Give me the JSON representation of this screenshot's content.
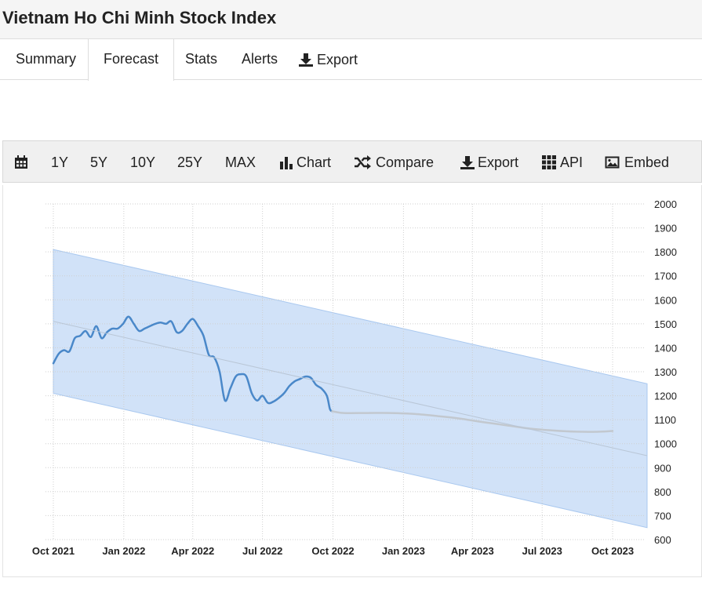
{
  "page": {
    "title": "Vietnam Ho Chi Minh Stock Index"
  },
  "tabs": {
    "summary": "Summary",
    "forecast": "Forecast",
    "stats": "Stats",
    "alerts": "Alerts",
    "export": "Export"
  },
  "toolbar": {
    "range_1y": "1Y",
    "range_5y": "5Y",
    "range_10y": "10Y",
    "range_25y": "25Y",
    "range_max": "MAX",
    "chart": "Chart",
    "compare": "Compare",
    "export": "Export",
    "api": "API",
    "embed": "Embed"
  },
  "icons": {
    "calendar": "calendar-icon",
    "download": "download-icon",
    "bar_chart": "bar-chart-icon",
    "shuffle": "shuffle-icon",
    "grid": "grid-icon",
    "image": "image-icon"
  },
  "colors": {
    "historical_line": "#4a88c9",
    "forecast_line": "#c2c8cf",
    "trend_line": "#b9c6d6",
    "band_fill": "#d1e2f8",
    "band_edge": "#a9c8ef",
    "grid": "#cfcfcf"
  },
  "chart_data": {
    "type": "line",
    "title": "",
    "xlabel": "",
    "ylabel": "",
    "y_axis_position": "right",
    "ylim": [
      600,
      2000
    ],
    "y_ticks": [
      600,
      700,
      800,
      900,
      1000,
      1100,
      1200,
      1300,
      1400,
      1500,
      1600,
      1700,
      1800,
      1900,
      2000
    ],
    "x_ticks": [
      {
        "date": "2021-10-01",
        "label": "Oct 2021"
      },
      {
        "date": "2022-01-01",
        "label": "Jan 2022"
      },
      {
        "date": "2022-04-01",
        "label": "Apr 2022"
      },
      {
        "date": "2022-07-01",
        "label": "Jul 2022"
      },
      {
        "date": "2022-10-01",
        "label": "Oct 2022"
      },
      {
        "date": "2023-01-01",
        "label": "Jan 2023"
      },
      {
        "date": "2023-04-01",
        "label": "Apr 2023"
      },
      {
        "date": "2023-07-01",
        "label": "Jul 2023"
      },
      {
        "date": "2023-10-01",
        "label": "Oct 2023"
      }
    ],
    "xlim": [
      "2021-10-01",
      "2023-11-15"
    ],
    "grid": true,
    "series": [
      {
        "role": "historical",
        "points": [
          [
            "2021-10-01",
            1335
          ],
          [
            "2021-10-08",
            1375
          ],
          [
            "2021-10-15",
            1390
          ],
          [
            "2021-10-22",
            1385
          ],
          [
            "2021-10-29",
            1440
          ],
          [
            "2021-11-05",
            1450
          ],
          [
            "2021-11-12",
            1470
          ],
          [
            "2021-11-19",
            1445
          ],
          [
            "2021-11-26",
            1490
          ],
          [
            "2021-12-03",
            1440
          ],
          [
            "2021-12-10",
            1465
          ],
          [
            "2021-12-17",
            1480
          ],
          [
            "2021-12-24",
            1480
          ],
          [
            "2021-12-31",
            1500
          ],
          [
            "2022-01-07",
            1530
          ],
          [
            "2022-01-14",
            1500
          ],
          [
            "2022-01-21",
            1470
          ],
          [
            "2022-01-28",
            1480
          ],
          [
            "2022-02-04",
            1490
          ],
          [
            "2022-02-11",
            1500
          ],
          [
            "2022-02-18",
            1505
          ],
          [
            "2022-02-25",
            1500
          ],
          [
            "2022-03-04",
            1510
          ],
          [
            "2022-03-11",
            1465
          ],
          [
            "2022-03-18",
            1470
          ],
          [
            "2022-03-25",
            1500
          ],
          [
            "2022-04-01",
            1520
          ],
          [
            "2022-04-08",
            1490
          ],
          [
            "2022-04-15",
            1450
          ],
          [
            "2022-04-22",
            1370
          ],
          [
            "2022-04-29",
            1360
          ],
          [
            "2022-05-06",
            1300
          ],
          [
            "2022-05-13",
            1180
          ],
          [
            "2022-05-20",
            1230
          ],
          [
            "2022-05-27",
            1280
          ],
          [
            "2022-06-03",
            1290
          ],
          [
            "2022-06-10",
            1280
          ],
          [
            "2022-06-17",
            1210
          ],
          [
            "2022-06-24",
            1180
          ],
          [
            "2022-07-01",
            1200
          ],
          [
            "2022-07-08",
            1170
          ],
          [
            "2022-07-15",
            1175
          ],
          [
            "2022-07-22",
            1190
          ],
          [
            "2022-07-29",
            1210
          ],
          [
            "2022-08-05",
            1240
          ],
          [
            "2022-08-12",
            1260
          ],
          [
            "2022-08-19",
            1270
          ],
          [
            "2022-08-26",
            1280
          ],
          [
            "2022-09-02",
            1275
          ],
          [
            "2022-09-09",
            1245
          ],
          [
            "2022-09-16",
            1230
          ],
          [
            "2022-09-23",
            1200
          ],
          [
            "2022-09-27",
            1145
          ],
          [
            "2022-09-30",
            1135
          ]
        ]
      },
      {
        "role": "forecast",
        "points": [
          [
            "2022-09-30",
            1135
          ],
          [
            "2022-10-15",
            1128
          ],
          [
            "2022-11-15",
            1128
          ],
          [
            "2022-12-15",
            1128
          ],
          [
            "2023-01-15",
            1124
          ],
          [
            "2023-02-15",
            1115
          ],
          [
            "2023-03-15",
            1105
          ],
          [
            "2023-04-15",
            1090
          ],
          [
            "2023-05-15",
            1077
          ],
          [
            "2023-06-15",
            1063
          ],
          [
            "2023-07-15",
            1055
          ],
          [
            "2023-08-15",
            1050
          ],
          [
            "2023-09-15",
            1050
          ],
          [
            "2023-10-01",
            1053
          ]
        ]
      },
      {
        "role": "trend",
        "points": [
          [
            "2021-10-01",
            1510
          ],
          [
            "2023-11-15",
            950
          ]
        ]
      }
    ],
    "band": {
      "start": {
        "date": "2021-10-01",
        "upper": 1810,
        "lower": 1210
      },
      "end": {
        "date": "2023-11-15",
        "upper": 1250,
        "lower": 650
      }
    }
  }
}
